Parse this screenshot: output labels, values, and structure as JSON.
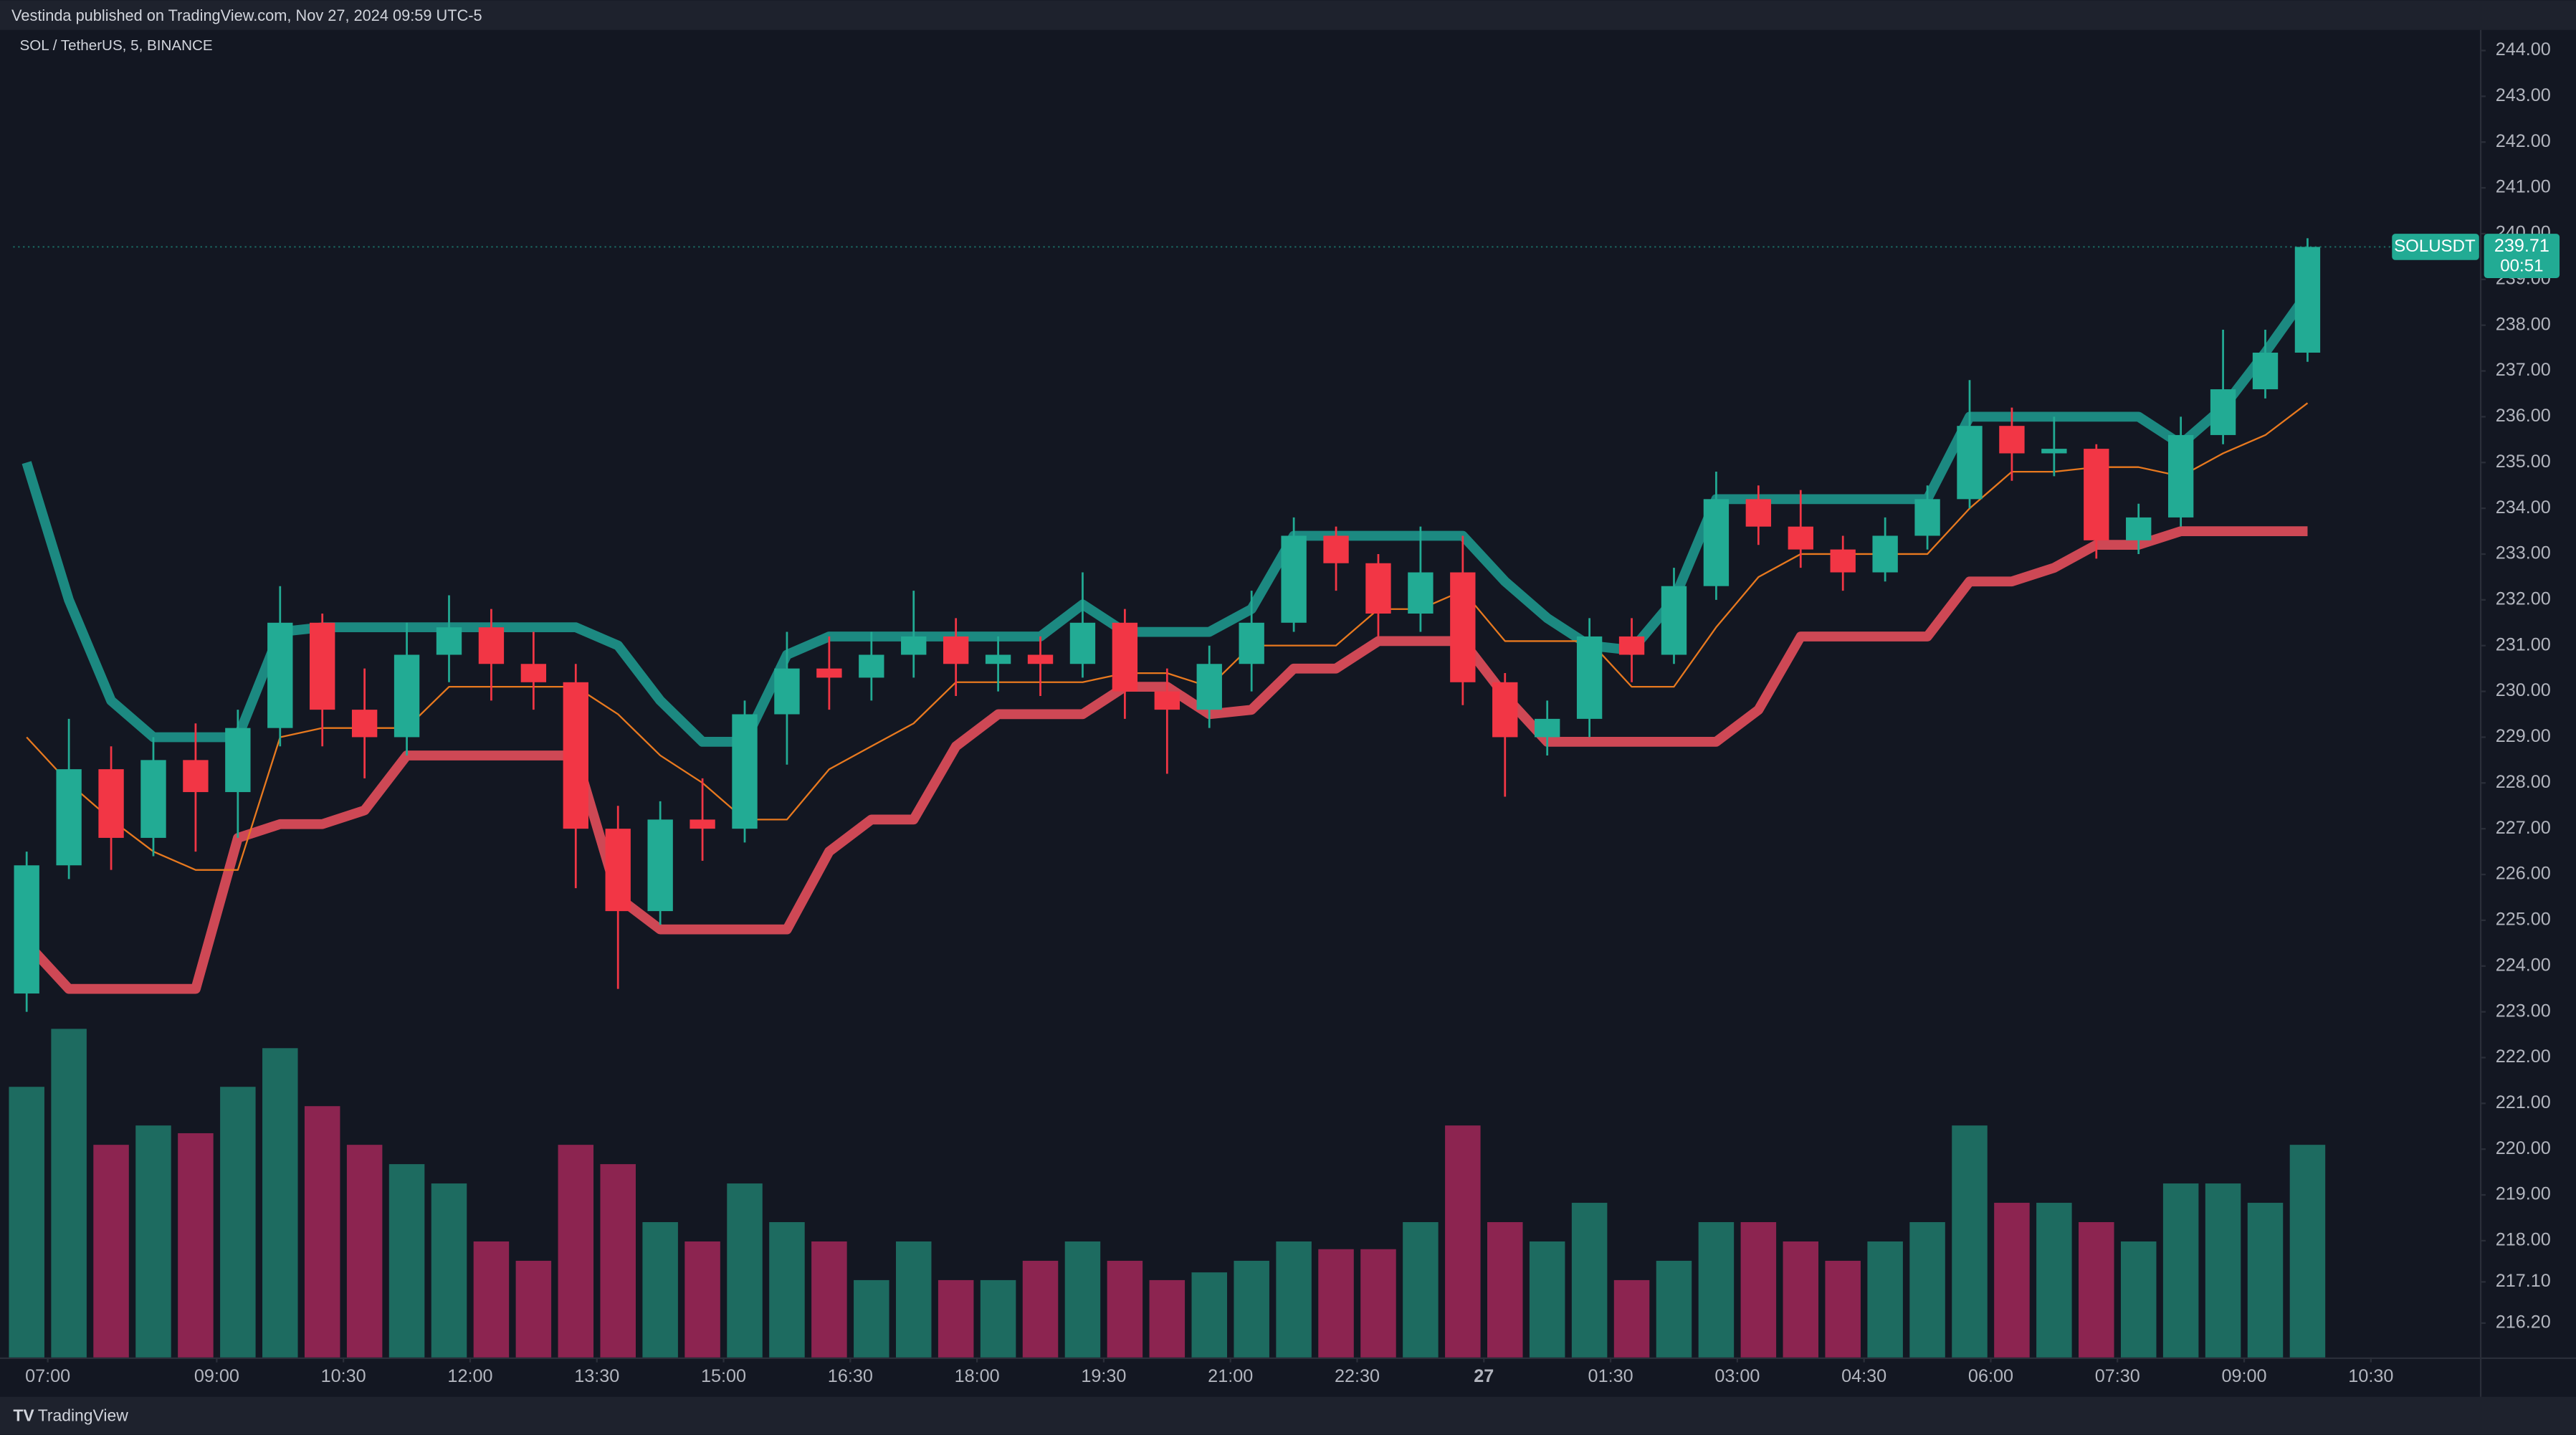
{
  "header": {
    "publisher": "Vestinda published on TradingView.com, Nov 27, 2024 09:59 UTC-5"
  },
  "footer": {
    "brand": "TradingView"
  },
  "chart_data": {
    "type": "candlestick",
    "title": "SOL / TetherUS, 5, BINANCE",
    "colors": {
      "up": "#22ab94",
      "down": "#f23645",
      "volume_up": "#1d6b60",
      "volume_down": "#8c2450"
    },
    "categories": [
      null,
      null,
      null,
      null,
      null,
      null,
      null,
      null,
      null,
      null,
      null,
      null,
      null,
      null,
      null,
      null,
      null,
      null,
      null,
      null,
      null,
      null,
      null,
      null,
      null,
      null,
      null,
      null,
      null,
      null,
      null,
      null,
      null,
      null,
      null,
      null,
      null,
      null,
      null,
      null,
      null,
      null,
      null,
      null,
      null,
      null,
      null,
      null,
      null,
      null,
      null,
      null,
      null,
      null,
      null
    ],
    "open": [
      223.4,
      226.2,
      228.3,
      226.8,
      228.5,
      227.8,
      229.2,
      231.5,
      229.6,
      229.0,
      230.8,
      231.4,
      230.6,
      230.2,
      227.0,
      225.2,
      227.2,
      227.0,
      229.5,
      230.5,
      230.3,
      230.8,
      231.2,
      230.6,
      230.8,
      230.6,
      231.5,
      230.0,
      229.6,
      230.6,
      231.5,
      233.4,
      232.8,
      231.7,
      232.6,
      230.2,
      229.0,
      229.4,
      231.2,
      230.8,
      232.3,
      234.2,
      233.6,
      233.1,
      232.6,
      233.4,
      234.2,
      235.8,
      235.2,
      235.3,
      233.3,
      233.8,
      235.6,
      236.6,
      237.4
    ],
    "high": [
      226.5,
      229.4,
      228.8,
      229.0,
      229.3,
      229.6,
      232.3,
      231.7,
      230.5,
      231.5,
      232.1,
      231.8,
      231.3,
      230.6,
      227.5,
      227.6,
      228.1,
      229.8,
      231.3,
      231.2,
      231.3,
      232.2,
      231.6,
      231.2,
      231.2,
      232.6,
      231.8,
      230.5,
      231.0,
      232.2,
      233.8,
      233.6,
      233.0,
      233.6,
      233.4,
      230.4,
      229.8,
      231.6,
      231.6,
      232.7,
      234.8,
      234.5,
      234.4,
      233.4,
      233.8,
      234.5,
      236.8,
      236.2,
      236.0,
      235.4,
      234.1,
      236.0,
      237.9,
      237.9,
      239.9
    ],
    "low": [
      223.0,
      225.9,
      226.1,
      226.4,
      226.5,
      226.8,
      228.8,
      228.8,
      228.1,
      228.6,
      230.2,
      229.8,
      229.6,
      225.7,
      223.5,
      224.9,
      226.3,
      226.7,
      228.4,
      229.6,
      229.8,
      230.3,
      229.9,
      230.0,
      229.9,
      230.3,
      229.4,
      228.2,
      229.2,
      230.0,
      231.3,
      232.2,
      231.2,
      231.3,
      229.7,
      227.7,
      228.6,
      229.0,
      230.2,
      230.6,
      232.0,
      233.2,
      232.7,
      232.2,
      232.4,
      233.1,
      234.0,
      234.6,
      234.7,
      232.9,
      233.0,
      233.6,
      235.4,
      236.4,
      237.2
    ],
    "close": [
      226.2,
      228.3,
      226.8,
      228.5,
      227.8,
      229.2,
      231.5,
      229.6,
      229.0,
      230.8,
      231.4,
      230.6,
      230.2,
      227.0,
      225.2,
      227.2,
      227.0,
      229.5,
      230.5,
      230.3,
      230.8,
      231.2,
      230.6,
      230.8,
      230.6,
      231.5,
      230.0,
      229.6,
      230.6,
      231.5,
      233.4,
      232.8,
      231.7,
      232.6,
      230.2,
      229.0,
      229.4,
      231.2,
      230.8,
      232.3,
      234.2,
      233.6,
      233.1,
      232.6,
      233.4,
      234.2,
      235.8,
      235.2,
      235.3,
      233.3,
      233.8,
      235.6,
      236.6,
      237.4,
      239.71
    ],
    "volume": [
      70,
      85,
      55,
      60,
      58,
      70,
      80,
      65,
      55,
      50,
      45,
      30,
      25,
      55,
      50,
      35,
      30,
      45,
      35,
      30,
      20,
      30,
      20,
      20,
      25,
      30,
      25,
      20,
      22,
      25,
      30,
      28,
      28,
      35,
      60,
      35,
      30,
      40,
      20,
      25,
      35,
      35,
      30,
      25,
      30,
      35,
      60,
      40,
      40,
      35,
      30,
      45,
      45,
      40,
      55
    ],
    "bands": [
      {
        "color": "#1f9e92",
        "values": [
          235.0,
          232.0,
          229.8,
          229.0,
          229.0,
          229.0,
          231.3,
          231.4,
          231.4,
          231.4,
          231.4,
          231.4,
          231.4,
          231.4,
          231.0,
          229.8,
          228.9,
          228.9,
          230.8,
          231.2,
          231.2,
          231.2,
          231.2,
          231.2,
          231.2,
          231.9,
          231.3,
          231.3,
          231.3,
          231.8,
          233.4,
          233.4,
          233.4,
          233.4,
          233.4,
          232.4,
          231.6,
          231.0,
          230.9,
          232.0,
          234.2,
          234.2,
          234.2,
          234.2,
          234.2,
          234.2,
          236.0,
          236.0,
          236.0,
          236.0,
          236.0,
          235.4,
          236.2,
          237.4,
          238.7
        ]
      },
      {
        "color": "#f0515e",
        "values": [
          224.5,
          223.5,
          223.5,
          223.5,
          223.5,
          226.8,
          227.1,
          227.1,
          227.4,
          228.6,
          228.6,
          228.6,
          228.6,
          228.6,
          225.5,
          224.8,
          224.8,
          224.8,
          224.8,
          226.5,
          227.2,
          227.2,
          228.8,
          229.5,
          229.5,
          229.5,
          230.1,
          230.1,
          229.5,
          229.6,
          230.5,
          230.5,
          231.1,
          231.1,
          231.1,
          229.9,
          228.9,
          228.9,
          228.9,
          228.9,
          228.9,
          229.6,
          231.2,
          231.2,
          231.2,
          231.2,
          232.4,
          232.4,
          232.7,
          233.2,
          233.2,
          233.5,
          233.5,
          233.5,
          233.5
        ]
      },
      {
        "color": "#e8791f",
        "values": [
          229.0,
          228.0,
          227.2,
          226.5,
          226.1,
          226.1,
          229.0,
          229.2,
          229.2,
          229.2,
          230.1,
          230.1,
          230.1,
          230.1,
          229.5,
          228.6,
          228.0,
          227.2,
          227.2,
          228.3,
          228.8,
          229.3,
          230.2,
          230.2,
          230.2,
          230.2,
          230.4,
          230.4,
          230.1,
          231.0,
          231.0,
          231.0,
          231.8,
          231.8,
          232.2,
          231.1,
          231.1,
          231.1,
          230.1,
          230.1,
          231.4,
          232.5,
          233.0,
          233.0,
          233.0,
          233.0,
          234.0,
          234.8,
          234.8,
          234.9,
          234.9,
          234.7,
          235.2,
          235.6,
          236.3
        ]
      }
    ],
    "price_label": {
      "symbol": "SOLUSDT",
      "value": 239.71,
      "countdown": "00:51"
    },
    "xlim": [
      -0.32,
      58.1
    ],
    "xticks": [
      {
        "value": 0.5,
        "label": "07:00"
      },
      {
        "value": 4.5,
        "label": "09:00"
      },
      {
        "value": 7.5,
        "label": "10:30"
      },
      {
        "value": 10.5,
        "label": "12:00"
      },
      {
        "value": 13.5,
        "label": "13:30"
      },
      {
        "value": 16.5,
        "label": "15:00"
      },
      {
        "value": 19.5,
        "label": "16:30"
      },
      {
        "value": 22.5,
        "label": "18:00"
      },
      {
        "value": 25.5,
        "label": "19:30"
      },
      {
        "value": 28.5,
        "label": "21:00"
      },
      {
        "value": 31.5,
        "label": "22:30"
      },
      {
        "value": 34.5,
        "label": "27"
      },
      {
        "value": 37.5,
        "label": "01:30"
      },
      {
        "value": 40.5,
        "label": "03:00"
      },
      {
        "value": 43.5,
        "label": "04:30"
      },
      {
        "value": 46.5,
        "label": "06:00"
      },
      {
        "value": 49.5,
        "label": "07:30"
      },
      {
        "value": 52.5,
        "label": "09:00"
      },
      {
        "value": 55.5,
        "label": "10:30"
      }
    ],
    "ylim": [
      215.45,
      244.45
    ],
    "yticks": [
      {
        "value": 244,
        "label": "244.00"
      },
      {
        "value": 243,
        "label": "243.00"
      },
      {
        "value": 242,
        "label": "242.00"
      },
      {
        "value": 241,
        "label": "241.00"
      },
      {
        "value": 240,
        "label": "240.00"
      },
      {
        "value": 239,
        "label": "239.00"
      },
      {
        "value": 238,
        "label": "238.00"
      },
      {
        "value": 237,
        "label": "237.00"
      },
      {
        "value": 236,
        "label": "236.00"
      },
      {
        "value": 235,
        "label": "235.00"
      },
      {
        "value": 234,
        "label": "234.00"
      },
      {
        "value": 233,
        "label": "233.00"
      },
      {
        "value": 232,
        "label": "232.00"
      },
      {
        "value": 231,
        "label": "231.00"
      },
      {
        "value": 230,
        "label": "230.00"
      },
      {
        "value": 229,
        "label": "229.00"
      },
      {
        "value": 228,
        "label": "228.00"
      },
      {
        "value": 227,
        "label": "227.00"
      },
      {
        "value": 226,
        "label": "226.00"
      },
      {
        "value": 225,
        "label": "225.00"
      },
      {
        "value": 224,
        "label": "224.00"
      },
      {
        "value": 223,
        "label": "223.00"
      },
      {
        "value": 222,
        "label": "222.00"
      },
      {
        "value": 221,
        "label": "221.00"
      },
      {
        "value": 220,
        "label": "220.00"
      },
      {
        "value": 219,
        "label": "219.00"
      },
      {
        "value": 218,
        "label": "218.00"
      },
      {
        "value": 217.1,
        "label": "217.10"
      },
      {
        "value": 216.2,
        "label": "216.20"
      }
    ]
  }
}
